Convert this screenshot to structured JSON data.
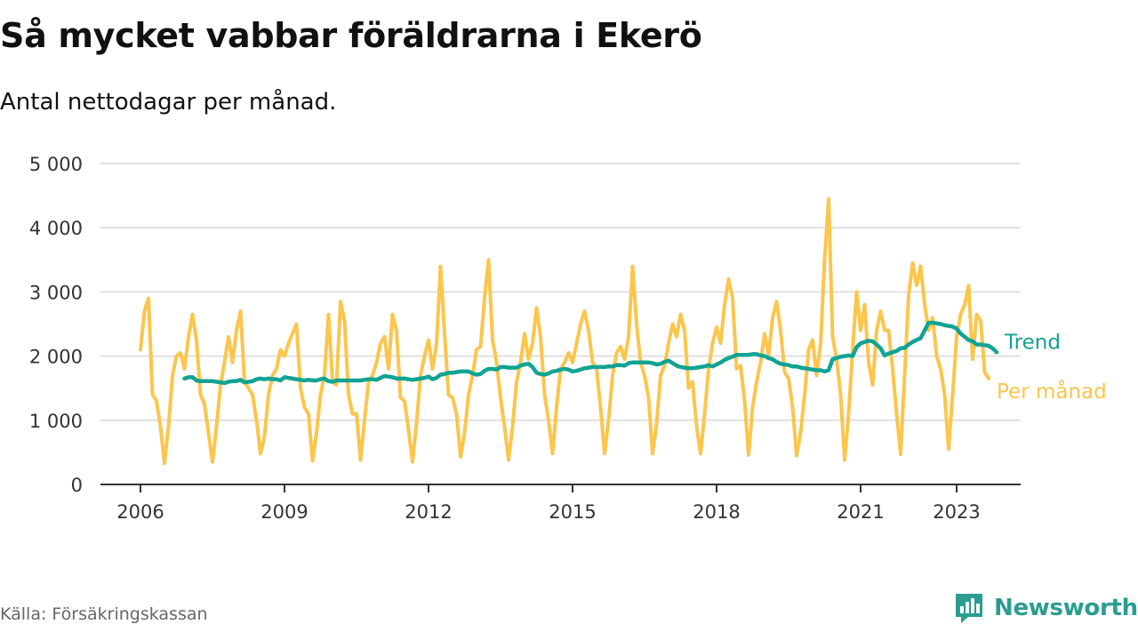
{
  "header": {
    "title": "Så mycket vabbar föräldrarna i Ekerö",
    "subtitle": "Antal nettodagar per månad."
  },
  "footer": {
    "source": "Källa: Försäkringskassan",
    "brand": "Newsworthy",
    "brand_icon": "bar-chart-speech-bubble-icon"
  },
  "colors": {
    "trend": "#12a393",
    "monthly": "#fcc54c",
    "grid": "#d9d9d9",
    "axis": "#333333",
    "brand": "#2a9d8f"
  },
  "chart_data": {
    "type": "line",
    "title": "Så mycket vabbar föräldrarna i Ekerö",
    "subtitle": "Antal nettodagar per månad.",
    "xlim": [
      "2005-03",
      "2024-05"
    ],
    "ylim": [
      0,
      5000
    ],
    "y_ticks": [
      0,
      1000,
      2000,
      3000,
      4000,
      5000
    ],
    "y_tick_labels": [
      "0",
      "1 000",
      "2 000",
      "3 000",
      "4 000",
      "5 000"
    ],
    "x_ticks": [
      "2006-01",
      "2009-01",
      "2012-01",
      "2015-01",
      "2018-01",
      "2021-01",
      "2023-01"
    ],
    "x_tick_labels": [
      "2006",
      "2009",
      "2012",
      "2015",
      "2018",
      "2021",
      "2023"
    ],
    "grid": "horizontal",
    "legend": "direct labels at line ends",
    "series": [
      {
        "name": "Trend",
        "start": "2006-12",
        "values": [
          1650,
          1670,
          1670,
          1620,
          1610,
          1610,
          1610,
          1610,
          1600,
          1590,
          1580,
          1600,
          1610,
          1610,
          1630,
          1590,
          1600,
          1610,
          1640,
          1650,
          1640,
          1650,
          1640,
          1640,
          1620,
          1670,
          1660,
          1650,
          1640,
          1630,
          1620,
          1630,
          1620,
          1620,
          1640,
          1650,
          1610,
          1600,
          1620,
          1620,
          1620,
          1620,
          1620,
          1620,
          1620,
          1630,
          1640,
          1640,
          1630,
          1660,
          1690,
          1680,
          1670,
          1650,
          1650,
          1650,
          1640,
          1630,
          1640,
          1650,
          1660,
          1680,
          1640,
          1660,
          1710,
          1720,
          1740,
          1740,
          1750,
          1760,
          1760,
          1760,
          1730,
          1710,
          1720,
          1770,
          1800,
          1800,
          1790,
          1830,
          1830,
          1820,
          1820,
          1820,
          1850,
          1870,
          1880,
          1830,
          1740,
          1720,
          1710,
          1730,
          1760,
          1770,
          1790,
          1800,
          1790,
          1760,
          1770,
          1790,
          1810,
          1820,
          1830,
          1830,
          1830,
          1830,
          1840,
          1840,
          1860,
          1860,
          1850,
          1890,
          1900,
          1900,
          1900,
          1900,
          1900,
          1890,
          1870,
          1880,
          1910,
          1930,
          1890,
          1850,
          1830,
          1820,
          1810,
          1810,
          1820,
          1830,
          1840,
          1860,
          1840,
          1870,
          1900,
          1940,
          1970,
          1990,
          2020,
          2020,
          2020,
          2020,
          2030,
          2030,
          2010,
          2000,
          1970,
          1950,
          1910,
          1880,
          1870,
          1860,
          1840,
          1840,
          1820,
          1810,
          1800,
          1790,
          1780,
          1780,
          1760,
          1780,
          1950,
          1970,
          1990,
          2000,
          2010,
          2000,
          2140,
          2200,
          2220,
          2240,
          2230,
          2180,
          2120,
          2010,
          2040,
          2060,
          2080,
          2120,
          2130,
          2180,
          2220,
          2250,
          2280,
          2400,
          2520,
          2520,
          2510,
          2500,
          2480,
          2470,
          2460,
          2430,
          2350,
          2300,
          2250,
          2230,
          2180,
          2180,
          2170,
          2160,
          2120,
          2060
        ]
      },
      {
        "name": "Per månad",
        "start": "2006-01",
        "values": [
          2100,
          2700,
          2900,
          1400,
          1300,
          900,
          330,
          900,
          1700,
          2000,
          2050,
          1800,
          2300,
          2650,
          2250,
          1400,
          1250,
          800,
          350,
          900,
          1550,
          1900,
          2300,
          1900,
          2400,
          2700,
          1600,
          1500,
          1400,
          1000,
          480,
          750,
          1400,
          1700,
          1800,
          2100,
          2000,
          2200,
          2350,
          2500,
          1500,
          1200,
          1100,
          370,
          800,
          1400,
          1700,
          2650,
          1600,
          1550,
          2850,
          2550,
          1400,
          1100,
          1100,
          380,
          1000,
          1600,
          1700,
          1900,
          2200,
          2300,
          1800,
          2650,
          2400,
          1350,
          1300,
          850,
          350,
          950,
          1700,
          2000,
          2250,
          1800,
          2200,
          3400,
          2350,
          1400,
          1350,
          1100,
          430,
          800,
          1400,
          1700,
          2100,
          2150,
          2900,
          3500,
          2250,
          1900,
          1350,
          900,
          380,
          900,
          1600,
          1900,
          2350,
          1950,
          2200,
          2750,
          2300,
          1400,
          1000,
          480,
          1200,
          1800,
          1900,
          2050,
          1900,
          2200,
          2500,
          2700,
          2400,
          1900,
          1800,
          1200,
          480,
          1000,
          1700,
          2050,
          2150,
          1950,
          2300,
          3400,
          2500,
          1900,
          1700,
          1350,
          480,
          950,
          1700,
          1850,
          2200,
          2500,
          2300,
          2650,
          2400,
          1500,
          1600,
          900,
          480,
          1100,
          1800,
          2200,
          2450,
          2200,
          2800,
          3200,
          2900,
          1800,
          1850,
          1300,
          460,
          1200,
          1600,
          1900,
          2350,
          2000,
          2600,
          2850,
          2400,
          1750,
          1650,
          1200,
          450,
          800,
          1400,
          2100,
          2250,
          1700,
          2200,
          3500,
          4450,
          2300,
          1950,
          1400,
          380,
          1100,
          2100,
          3000,
          2400,
          2800,
          1900,
          1550,
          2400,
          2700,
          2400,
          2400,
          1800,
          1100,
          470,
          1700,
          2950,
          3450,
          3100,
          3400,
          2800,
          2400,
          2600,
          2000,
          1800,
          1400,
          550,
          1400,
          2300,
          2650,
          2800,
          3100,
          1950,
          2650,
          2550,
          1750,
          1650
        ]
      }
    ]
  }
}
